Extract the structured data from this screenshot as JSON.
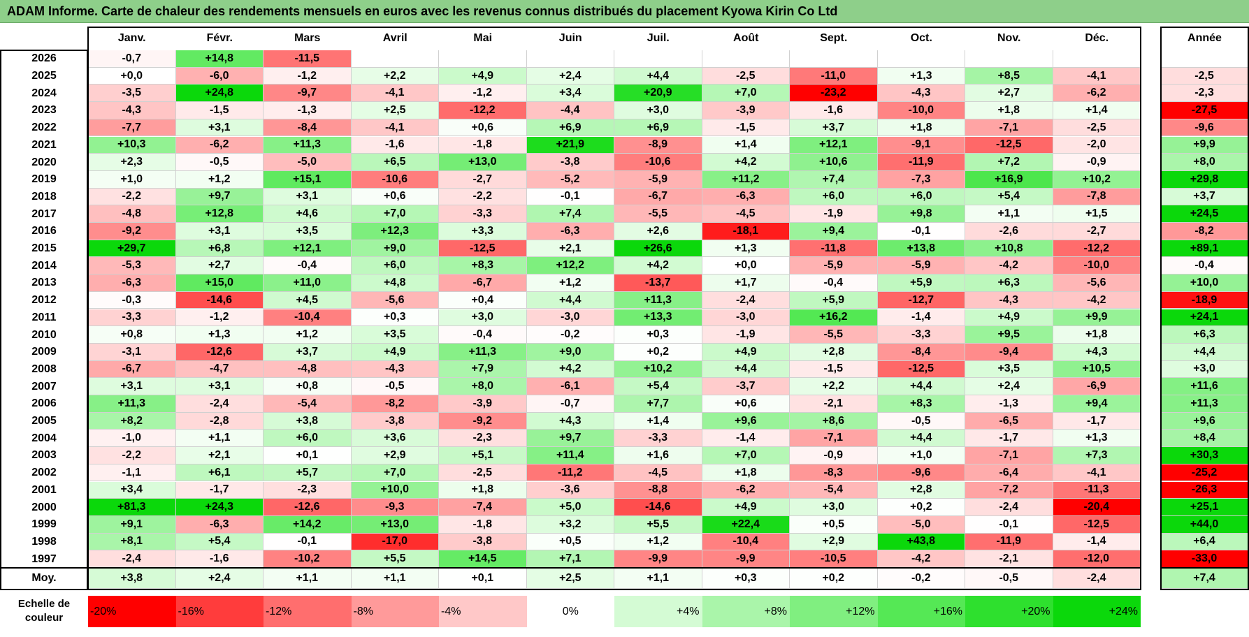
{
  "title": "ADAM Informe. Carte de chaleur des rendements mensuels en euros avec les revenus connus distribués du placement Kyowa Kirin Co Ltd",
  "chart_data": {
    "type": "heatmap",
    "columns": [
      "Janv.",
      "Févr.",
      "Mars",
      "Avril",
      "Mai",
      "Juin",
      "Juil.",
      "Août",
      "Sept.",
      "Oct.",
      "Nov.",
      "Déc."
    ],
    "annual_header": "Année",
    "rows": [
      {
        "year": "2026",
        "values": [
          "-0,7",
          "+14,8",
          "-11,5",
          "",
          "",
          "",
          "",
          "",
          "",
          "",
          "",
          ""
        ],
        "annual": ""
      },
      {
        "year": "2025",
        "values": [
          "+0,0",
          "-6,0",
          "-1,2",
          "+2,2",
          "+4,9",
          "+2,4",
          "+4,4",
          "-2,5",
          "-11,0",
          "+1,3",
          "+8,5",
          "-4,1"
        ],
        "annual": "-2,5"
      },
      {
        "year": "2024",
        "values": [
          "-3,5",
          "+24,8",
          "-9,7",
          "-4,1",
          "-1,2",
          "+3,4",
          "+20,9",
          "+7,0",
          "-23,2",
          "-4,3",
          "+2,7",
          "-6,2"
        ],
        "annual": "-2,3"
      },
      {
        "year": "2023",
        "values": [
          "-4,3",
          "-1,5",
          "-1,3",
          "+2,5",
          "-12,2",
          "-4,4",
          "+3,0",
          "-3,9",
          "-1,6",
          "-10,0",
          "+1,8",
          "+1,4"
        ],
        "annual": "-27,5"
      },
      {
        "year": "2022",
        "values": [
          "-7,7",
          "+3,1",
          "-8,4",
          "-4,1",
          "+0,6",
          "+6,9",
          "+6,9",
          "-1,5",
          "+3,7",
          "+1,8",
          "-7,1",
          "-2,5"
        ],
        "annual": "-9,6"
      },
      {
        "year": "2021",
        "values": [
          "+10,3",
          "-6,2",
          "+11,3",
          "-1,6",
          "-1,8",
          "+21,9",
          "-8,9",
          "+1,4",
          "+12,1",
          "-9,1",
          "-12,5",
          "-2,0"
        ],
        "annual": "+9,9"
      },
      {
        "year": "2020",
        "values": [
          "+2,3",
          "-0,5",
          "-5,0",
          "+6,5",
          "+13,0",
          "-3,8",
          "-10,6",
          "+4,2",
          "+10,6",
          "-11,9",
          "+7,2",
          "-0,9"
        ],
        "annual": "+8,0"
      },
      {
        "year": "2019",
        "values": [
          "+1,0",
          "+1,2",
          "+15,1",
          "-10,6",
          "-2,7",
          "-5,2",
          "-5,9",
          "+11,2",
          "+7,4",
          "-7,3",
          "+16,9",
          "+10,2"
        ],
        "annual": "+29,8"
      },
      {
        "year": "2018",
        "values": [
          "-2,2",
          "+9,7",
          "+3,1",
          "+0,6",
          "-2,2",
          "-0,1",
          "-6,7",
          "-6,3",
          "+6,0",
          "+6,0",
          "+5,4",
          "-7,8"
        ],
        "annual": "+3,7"
      },
      {
        "year": "2017",
        "values": [
          "-4,8",
          "+12,8",
          "+4,6",
          "+7,0",
          "-3,3",
          "+7,4",
          "-5,5",
          "-4,5",
          "-1,9",
          "+9,8",
          "+1,1",
          "+1,5"
        ],
        "annual": "+24,5"
      },
      {
        "year": "2016",
        "values": [
          "-9,2",
          "+3,1",
          "+3,5",
          "+12,3",
          "+3,3",
          "-6,3",
          "+2,6",
          "-18,1",
          "+9,4",
          "-0,1",
          "-2,6",
          "-2,7"
        ],
        "annual": "-8,2"
      },
      {
        "year": "2015",
        "values": [
          "+29,7",
          "+6,8",
          "+12,1",
          "+9,0",
          "-12,5",
          "+2,1",
          "+26,6",
          "+1,3",
          "-11,8",
          "+13,8",
          "+10,8",
          "-12,2"
        ],
        "annual": "+89,1"
      },
      {
        "year": "2014",
        "values": [
          "-5,3",
          "+2,7",
          "-0,4",
          "+6,0",
          "+8,3",
          "+12,2",
          "+4,2",
          "+0,0",
          "-5,9",
          "-5,9",
          "-4,2",
          "-10,0"
        ],
        "annual": "-0,4"
      },
      {
        "year": "2013",
        "values": [
          "-6,3",
          "+15,0",
          "+11,0",
          "+4,8",
          "-6,7",
          "+1,2",
          "-13,7",
          "+1,7",
          "-0,4",
          "+5,9",
          "+6,3",
          "-5,6"
        ],
        "annual": "+10,0"
      },
      {
        "year": "2012",
        "values": [
          "-0,3",
          "-14,6",
          "+4,5",
          "-5,6",
          "+0,4",
          "+4,4",
          "+11,3",
          "-2,4",
          "+5,9",
          "-12,7",
          "-4,3",
          "-4,2"
        ],
        "annual": "-18,9"
      },
      {
        "year": "2011",
        "values": [
          "-3,3",
          "-1,2",
          "-10,4",
          "+0,3",
          "+3,0",
          "-3,0",
          "+13,3",
          "-3,0",
          "+16,2",
          "-1,4",
          "+4,9",
          "+9,9"
        ],
        "annual": "+24,1"
      },
      {
        "year": "2010",
        "values": [
          "+0,8",
          "+1,3",
          "+1,2",
          "+3,5",
          "-0,4",
          "-0,2",
          "+0,3",
          "-1,9",
          "-5,5",
          "-3,3",
          "+9,5",
          "+1,8"
        ],
        "annual": "+6,3"
      },
      {
        "year": "2009",
        "values": [
          "-3,1",
          "-12,6",
          "+3,7",
          "+4,9",
          "+11,3",
          "+9,0",
          "+0,2",
          "+4,9",
          "+2,8",
          "-8,4",
          "-9,4",
          "+4,3"
        ],
        "annual": "+4,4"
      },
      {
        "year": "2008",
        "values": [
          "-6,7",
          "-4,7",
          "-4,8",
          "-4,3",
          "+7,9",
          "+4,2",
          "+10,2",
          "+4,4",
          "-1,5",
          "-12,5",
          "+3,5",
          "+10,5"
        ],
        "annual": "+3,0"
      },
      {
        "year": "2007",
        "values": [
          "+3,1",
          "+3,1",
          "+0,8",
          "-0,5",
          "+8,0",
          "-6,1",
          "+5,4",
          "-3,7",
          "+2,2",
          "+4,4",
          "+2,4",
          "-6,9"
        ],
        "annual": "+11,6"
      },
      {
        "year": "2006",
        "values": [
          "+11,3",
          "-2,4",
          "-5,4",
          "-8,2",
          "-3,9",
          "-0,7",
          "+7,7",
          "+0,6",
          "-2,1",
          "+8,3",
          "-1,3",
          "+9,4"
        ],
        "annual": "+11,3"
      },
      {
        "year": "2005",
        "values": [
          "+8,2",
          "-2,8",
          "+3,8",
          "-3,8",
          "-9,2",
          "+4,3",
          "+1,4",
          "+9,6",
          "+8,6",
          "-0,5",
          "-6,5",
          "-1,7"
        ],
        "annual": "+9,6"
      },
      {
        "year": "2004",
        "values": [
          "-1,0",
          "+1,1",
          "+6,0",
          "+3,6",
          "-2,3",
          "+9,7",
          "-3,3",
          "-1,4",
          "-7,1",
          "+4,4",
          "-1,7",
          "+1,3"
        ],
        "annual": "+8,4"
      },
      {
        "year": "2003",
        "values": [
          "-2,2",
          "+2,1",
          "+0,1",
          "+2,9",
          "+5,1",
          "+11,4",
          "+1,6",
          "+7,0",
          "-0,9",
          "+1,0",
          "-7,1",
          "+7,3"
        ],
        "annual": "+30,3"
      },
      {
        "year": "2002",
        "values": [
          "-1,1",
          "+6,1",
          "+5,7",
          "+7,0",
          "-2,5",
          "-11,2",
          "-4,5",
          "+1,8",
          "-8,3",
          "-9,6",
          "-6,4",
          "-4,1"
        ],
        "annual": "-25,2"
      },
      {
        "year": "2001",
        "values": [
          "+3,4",
          "-1,7",
          "-2,3",
          "+10,0",
          "+1,8",
          "-3,6",
          "-8,8",
          "-6,2",
          "-5,4",
          "+2,8",
          "-7,2",
          "-11,3"
        ],
        "annual": "-26,3"
      },
      {
        "year": "2000",
        "values": [
          "+81,3",
          "+24,3",
          "-12,6",
          "-9,3",
          "-7,4",
          "+5,0",
          "-14,6",
          "+4,9",
          "+3,0",
          "+0,2",
          "-2,4",
          "-20,4"
        ],
        "annual": "+25,1"
      },
      {
        "year": "1999",
        "values": [
          "+9,1",
          "-6,3",
          "+14,2",
          "+13,0",
          "-1,8",
          "+3,2",
          "+5,5",
          "+22,4",
          "+0,5",
          "-5,0",
          "-0,1",
          "-12,5"
        ],
        "annual": "+44,0"
      },
      {
        "year": "1998",
        "values": [
          "+8,1",
          "+5,4",
          "-0,1",
          "-17,0",
          "-3,8",
          "+0,5",
          "+1,2",
          "-10,4",
          "+2,9",
          "+43,8",
          "-11,9",
          "-1,4"
        ],
        "annual": "+6,4"
      },
      {
        "year": "1997",
        "values": [
          "-2,4",
          "-1,6",
          "-10,2",
          "+5,5",
          "+14,5",
          "+7,1",
          "-9,9",
          "-9,9",
          "-10,5",
          "-4,2",
          "-2,1",
          "-12,0"
        ],
        "annual": "-33,0"
      }
    ],
    "average": {
      "label": "Moy.",
      "values": [
        "+3,8",
        "+2,4",
        "+1,1",
        "+1,1",
        "+0,1",
        "+2,5",
        "+1,1",
        "+0,3",
        "+0,2",
        "-0,2",
        "-0,5",
        "-2,4"
      ],
      "annual": "+7,4"
    },
    "scale": {
      "label": "Echelle de couleur",
      "stops": [
        {
          "text": "-20%",
          "value": -20,
          "color": "#ff0000"
        },
        {
          "text": "-16%",
          "value": -16,
          "color": "#ff3c3c"
        },
        {
          "text": "-12%",
          "value": -12,
          "color": "#ff6e6e"
        },
        {
          "text": "-8%",
          "value": -8,
          "color": "#ff9a9a"
        },
        {
          "text": "-4%",
          "value": -4,
          "color": "#ffc8c8"
        },
        {
          "text": "0%",
          "value": 0,
          "color": "#ffffff"
        },
        {
          "text": "+4%",
          "value": 4,
          "color": "#d4fbd4"
        },
        {
          "text": "+8%",
          "value": 8,
          "color": "#aaf5aa"
        },
        {
          "text": "+12%",
          "value": 12,
          "color": "#80ef80"
        },
        {
          "text": "+16%",
          "value": 16,
          "color": "#55e855"
        },
        {
          "text": "+20%",
          "value": 20,
          "color": "#2ee02e"
        },
        {
          "text": "+24%",
          "value": 24,
          "color": "#0bd80b"
        }
      ]
    }
  }
}
